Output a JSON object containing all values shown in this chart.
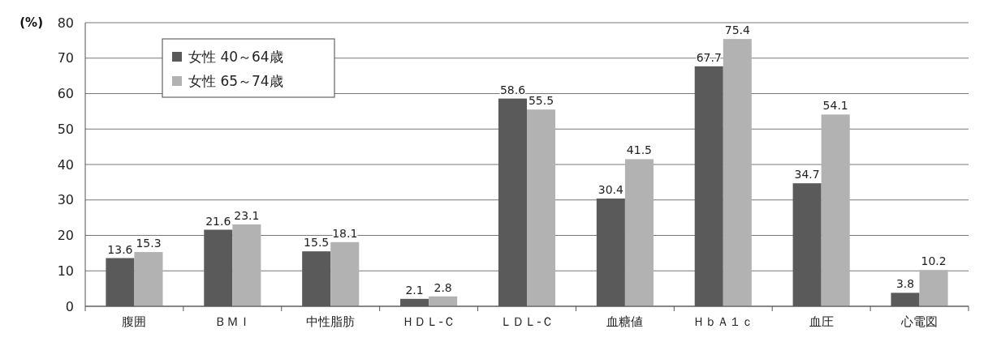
{
  "chart_data": {
    "type": "bar",
    "ylabel": "(%)",
    "categories": [
      "腹囲",
      "ＢＭＩ",
      "中性脂肪",
      "ＨＤＬ-Ｃ",
      "ＬＤＬ-Ｃ",
      "血糖値",
      "ＨｂＡ１ｃ",
      "血圧",
      "心電図"
    ],
    "series": [
      {
        "name": "女性 40～64歳",
        "color": "#5a5a5a",
        "values": [
          13.6,
          21.6,
          15.5,
          2.1,
          58.6,
          30.4,
          67.7,
          34.7,
          3.8
        ]
      },
      {
        "name": "女性 65～74歳",
        "color": "#b2b2b2",
        "values": [
          15.3,
          23.1,
          18.1,
          2.8,
          55.5,
          41.5,
          75.4,
          54.1,
          10.2
        ]
      }
    ],
    "ylim": [
      0,
      80
    ],
    "yticks": [
      0,
      10,
      20,
      30,
      40,
      50,
      60,
      70,
      80
    ],
    "grid": "y",
    "legend": "top left",
    "data_labels": true
  }
}
